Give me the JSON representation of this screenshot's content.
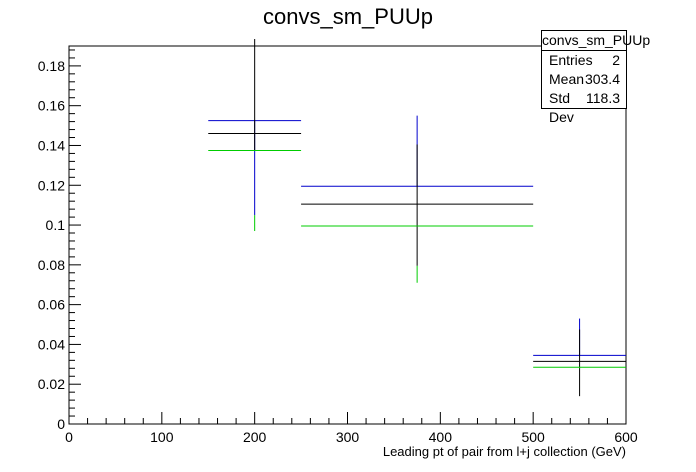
{
  "chart_data": {
    "type": "scatter",
    "title": "convs_sm_PUUp",
    "xlabel": "Leading pt of pair from l+j collection (GeV)",
    "ylabel": "",
    "xlim": [
      0,
      600
    ],
    "ylim": [
      0,
      0.19
    ],
    "x_ticks": [
      0,
      100,
      200,
      300,
      400,
      500,
      600
    ],
    "y_ticks": [
      0,
      0.02,
      0.04,
      0.06,
      0.08,
      0.1,
      0.12,
      0.14,
      0.16,
      0.18
    ],
    "x_tick_labels": [
      "0",
      "100",
      "200",
      "300",
      "400",
      "500",
      "600"
    ],
    "y_tick_labels": [
      "0",
      "0.02",
      "0.04",
      "0.06",
      "0.08",
      "0.1",
      "0.12",
      "0.14",
      "0.16",
      "0.18"
    ],
    "grid": false,
    "series": [
      {
        "color": "#0000cc",
        "points": [
          {
            "x": 200,
            "xlo": 150,
            "xhi": 250,
            "y": 0.1525,
            "ylo": 0.105,
            "yhi": 0.1525
          },
          {
            "x": 375,
            "xlo": 250,
            "xhi": 500,
            "y": 0.1195,
            "ylo": 0.1195,
            "yhi": 0.155
          },
          {
            "x": 550,
            "xlo": 500,
            "xhi": 600,
            "y": 0.0345,
            "ylo": 0.0345,
            "yhi": 0.053
          }
        ]
      },
      {
        "color": "#000000",
        "points": [
          {
            "x": 200,
            "xlo": 150,
            "xhi": 250,
            "y": 0.146,
            "ylo": 0.1375,
            "yhi": 0.1935
          },
          {
            "x": 375,
            "xlo": 250,
            "xhi": 500,
            "y": 0.1105,
            "ylo": 0.0795,
            "yhi": 0.1405
          },
          {
            "x": 550,
            "xlo": 500,
            "xhi": 600,
            "y": 0.0315,
            "ylo": 0.014,
            "yhi": 0.0475
          }
        ]
      },
      {
        "color": "#00cc00",
        "points": [
          {
            "x": 200,
            "xlo": 150,
            "xhi": 250,
            "y": 0.1375,
            "ylo": 0.097,
            "yhi": 0.105
          },
          {
            "x": 375,
            "xlo": 250,
            "xhi": 500,
            "y": 0.0995,
            "ylo": 0.071,
            "yhi": 0.0795
          },
          {
            "x": 550,
            "xlo": 500,
            "xhi": 600,
            "y": 0.0285,
            "ylo": 0.028,
            "yhi": 0.0285
          }
        ]
      }
    ],
    "stats": {
      "title": "convs_sm_PUUp",
      "rows": [
        {
          "label": "Entries",
          "value": "2"
        },
        {
          "label": "Mean",
          "value": "303.4"
        },
        {
          "label": "Std Dev",
          "value": "118.3"
        }
      ]
    }
  }
}
